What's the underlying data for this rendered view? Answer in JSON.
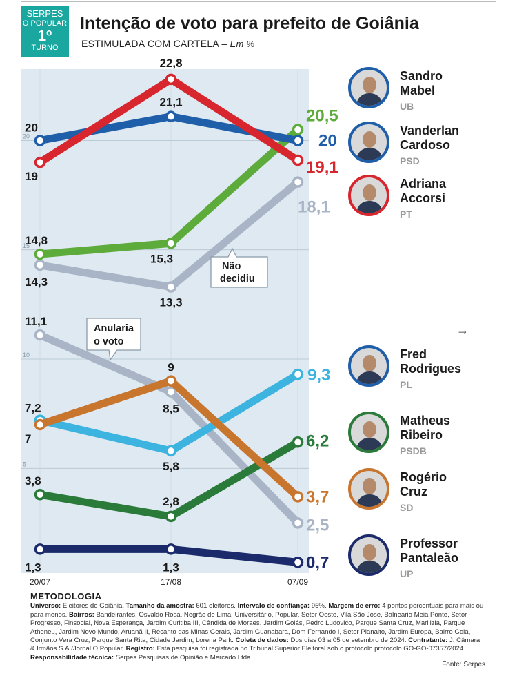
{
  "badge": {
    "line1": "SERPES",
    "line2": "O POPULAR",
    "line3": "1º",
    "line4": "TURNO"
  },
  "title": "Intenção de voto para prefeito de Goiânia",
  "subtitle": "ESTIMULADA COM CARTELA –",
  "unit": "Em %",
  "chart_data": {
    "type": "line",
    "categories": [
      "20/07",
      "17/08",
      "07/09"
    ],
    "ylim": [
      0,
      25
    ],
    "y_ticks": [
      "20",
      "15",
      "10",
      "5"
    ],
    "series": [
      {
        "name": "Sandro Mabel",
        "party": "UB",
        "color": "#1f5ea8",
        "values": [
          20,
          21.1,
          20
        ],
        "labels": [
          "20",
          "21,1",
          "20"
        ]
      },
      {
        "name": "Vanderlan Cardoso",
        "party": "PSD",
        "color": "#d8262e",
        "values": [
          19,
          22.8,
          19.1
        ],
        "labels": [
          "19",
          "22,8",
          "19,1"
        ]
      },
      {
        "name": "Adriana Accorsi",
        "party": "PT",
        "color": "#5dab3a",
        "values": [
          14.8,
          15.3,
          20.5
        ],
        "labels": [
          "14,8",
          "15,3",
          "20,5"
        ]
      },
      {
        "name": "Não decidiu",
        "color": "#a9b5c6",
        "values": [
          14.3,
          13.3,
          18.1
        ],
        "labels": [
          "14,3",
          "13,3",
          "18,1"
        ]
      },
      {
        "name": "Anularia o voto",
        "color": "#a9b5c6",
        "values": [
          11.1,
          8.5,
          2.5
        ],
        "labels": [
          "11,1",
          "8,5",
          "2,5"
        ]
      },
      {
        "name": "Fred Rodrigues",
        "party": "PL",
        "color": "#3cb4df",
        "values": [
          7.2,
          5.8,
          9.3
        ],
        "labels": [
          "7,2",
          "5,8",
          "9,3"
        ]
      },
      {
        "name": "Matheus Ribeiro",
        "party": "PSDB",
        "color": "#2a7a3a",
        "values": [
          3.8,
          2.8,
          6.2
        ],
        "labels": [
          "3,8",
          "2,8",
          "6,2"
        ]
      },
      {
        "name": "Rogério Cruz",
        "party": "SD",
        "color": "#c8752e",
        "values": [
          7,
          9,
          3.7
        ],
        "labels": [
          "7",
          "9",
          "3,7"
        ]
      },
      {
        "name": "Professor Pantaleão",
        "party": "UP",
        "color": "#1b2a6b",
        "values": [
          1.3,
          1.3,
          0.7
        ],
        "labels": [
          "1,3",
          "1,3",
          "0,7"
        ]
      }
    ],
    "callouts": {
      "nao_decidiu": [
        "Não",
        "decidiu"
      ],
      "anularia": [
        "Anularia",
        "o voto"
      ]
    }
  },
  "candidates": [
    {
      "first": "Sandro",
      "last": "Mabel",
      "party": "UB",
      "ring": "#1f5ea8"
    },
    {
      "first": "Vanderlan",
      "last": "Cardoso",
      "party": "PSD",
      "ring": "#1f5ea8"
    },
    {
      "first": "Adriana",
      "last": "Accorsi",
      "party": "PT",
      "ring": "#d8262e"
    },
    {
      "first": "Fred",
      "last": "Rodrigues",
      "party": "PL",
      "ring": "#1f5ea8"
    },
    {
      "first": "Matheus",
      "last": "Ribeiro",
      "party": "PSDB",
      "ring": "#2a7a3a"
    },
    {
      "first": "Rogério",
      "last": "Cruz",
      "party": "SD",
      "ring": "#c8752e"
    },
    {
      "first": "Professor",
      "last": "Pantaleão",
      "party": "UP",
      "ring": "#1b2a6b"
    }
  ],
  "metodologia": {
    "heading": "METODOLOGIA",
    "universo_label": "Universo:",
    "universo": "Eleitores de Goiânia.",
    "amostra_label": "Tamanho da amostra:",
    "amostra": "601 eleitores.",
    "confianca_label": "Intervalo de confiança:",
    "confianca": "95%.",
    "erro_label": "Margem de erro:",
    "erro": "4 pontos porcentuais para mais ou para menos.",
    "bairros_label": "Bairros:",
    "bairros": "Bandeirantes, Osvaldo Rosa, Negrão de Lima, Universitário, Popular, Setor Oeste, Vila São Jose, Balneário Meia Ponte, Setor Progresso, Finsocial, Nova Esperança, Jardim Curitiba III, Cândida de Moraes, Jardim Goiás, Pedro Ludovico, Parque Santa Cruz, Marilizia, Parque Atheneu, Jardim Novo Mundo, Aruanã II, Recanto das Minas Gerais, Jardim Guanabara, Dom Fernando I, Setor Planalto, Jardim Europa, Bairro Goiá, Conjunto Vera Cruz, Parque Santa Rita, Cidade Jardim, Lorena Park.",
    "coleta_label": "Coleta de dados:",
    "coleta": "Dos dias 03 a 05 de setembro de 2024.",
    "contratante_label": "Contratante:",
    "contratante": "J. Câmara & Irmãos S.A./Jornal O Popular.",
    "registro_label": "Registro:",
    "registro": "Esta pesquisa foi registrada no Tribunal Superior Eleitoral sob o protocolo protocolo GO-GO-07357/2024.",
    "resp_label": "Responsabilidade técnica:",
    "resp": "Serpes Pesquisas de Opinião e Mercado Ltda."
  },
  "fonte": "Fonte: Serpes",
  "arrow": "→"
}
